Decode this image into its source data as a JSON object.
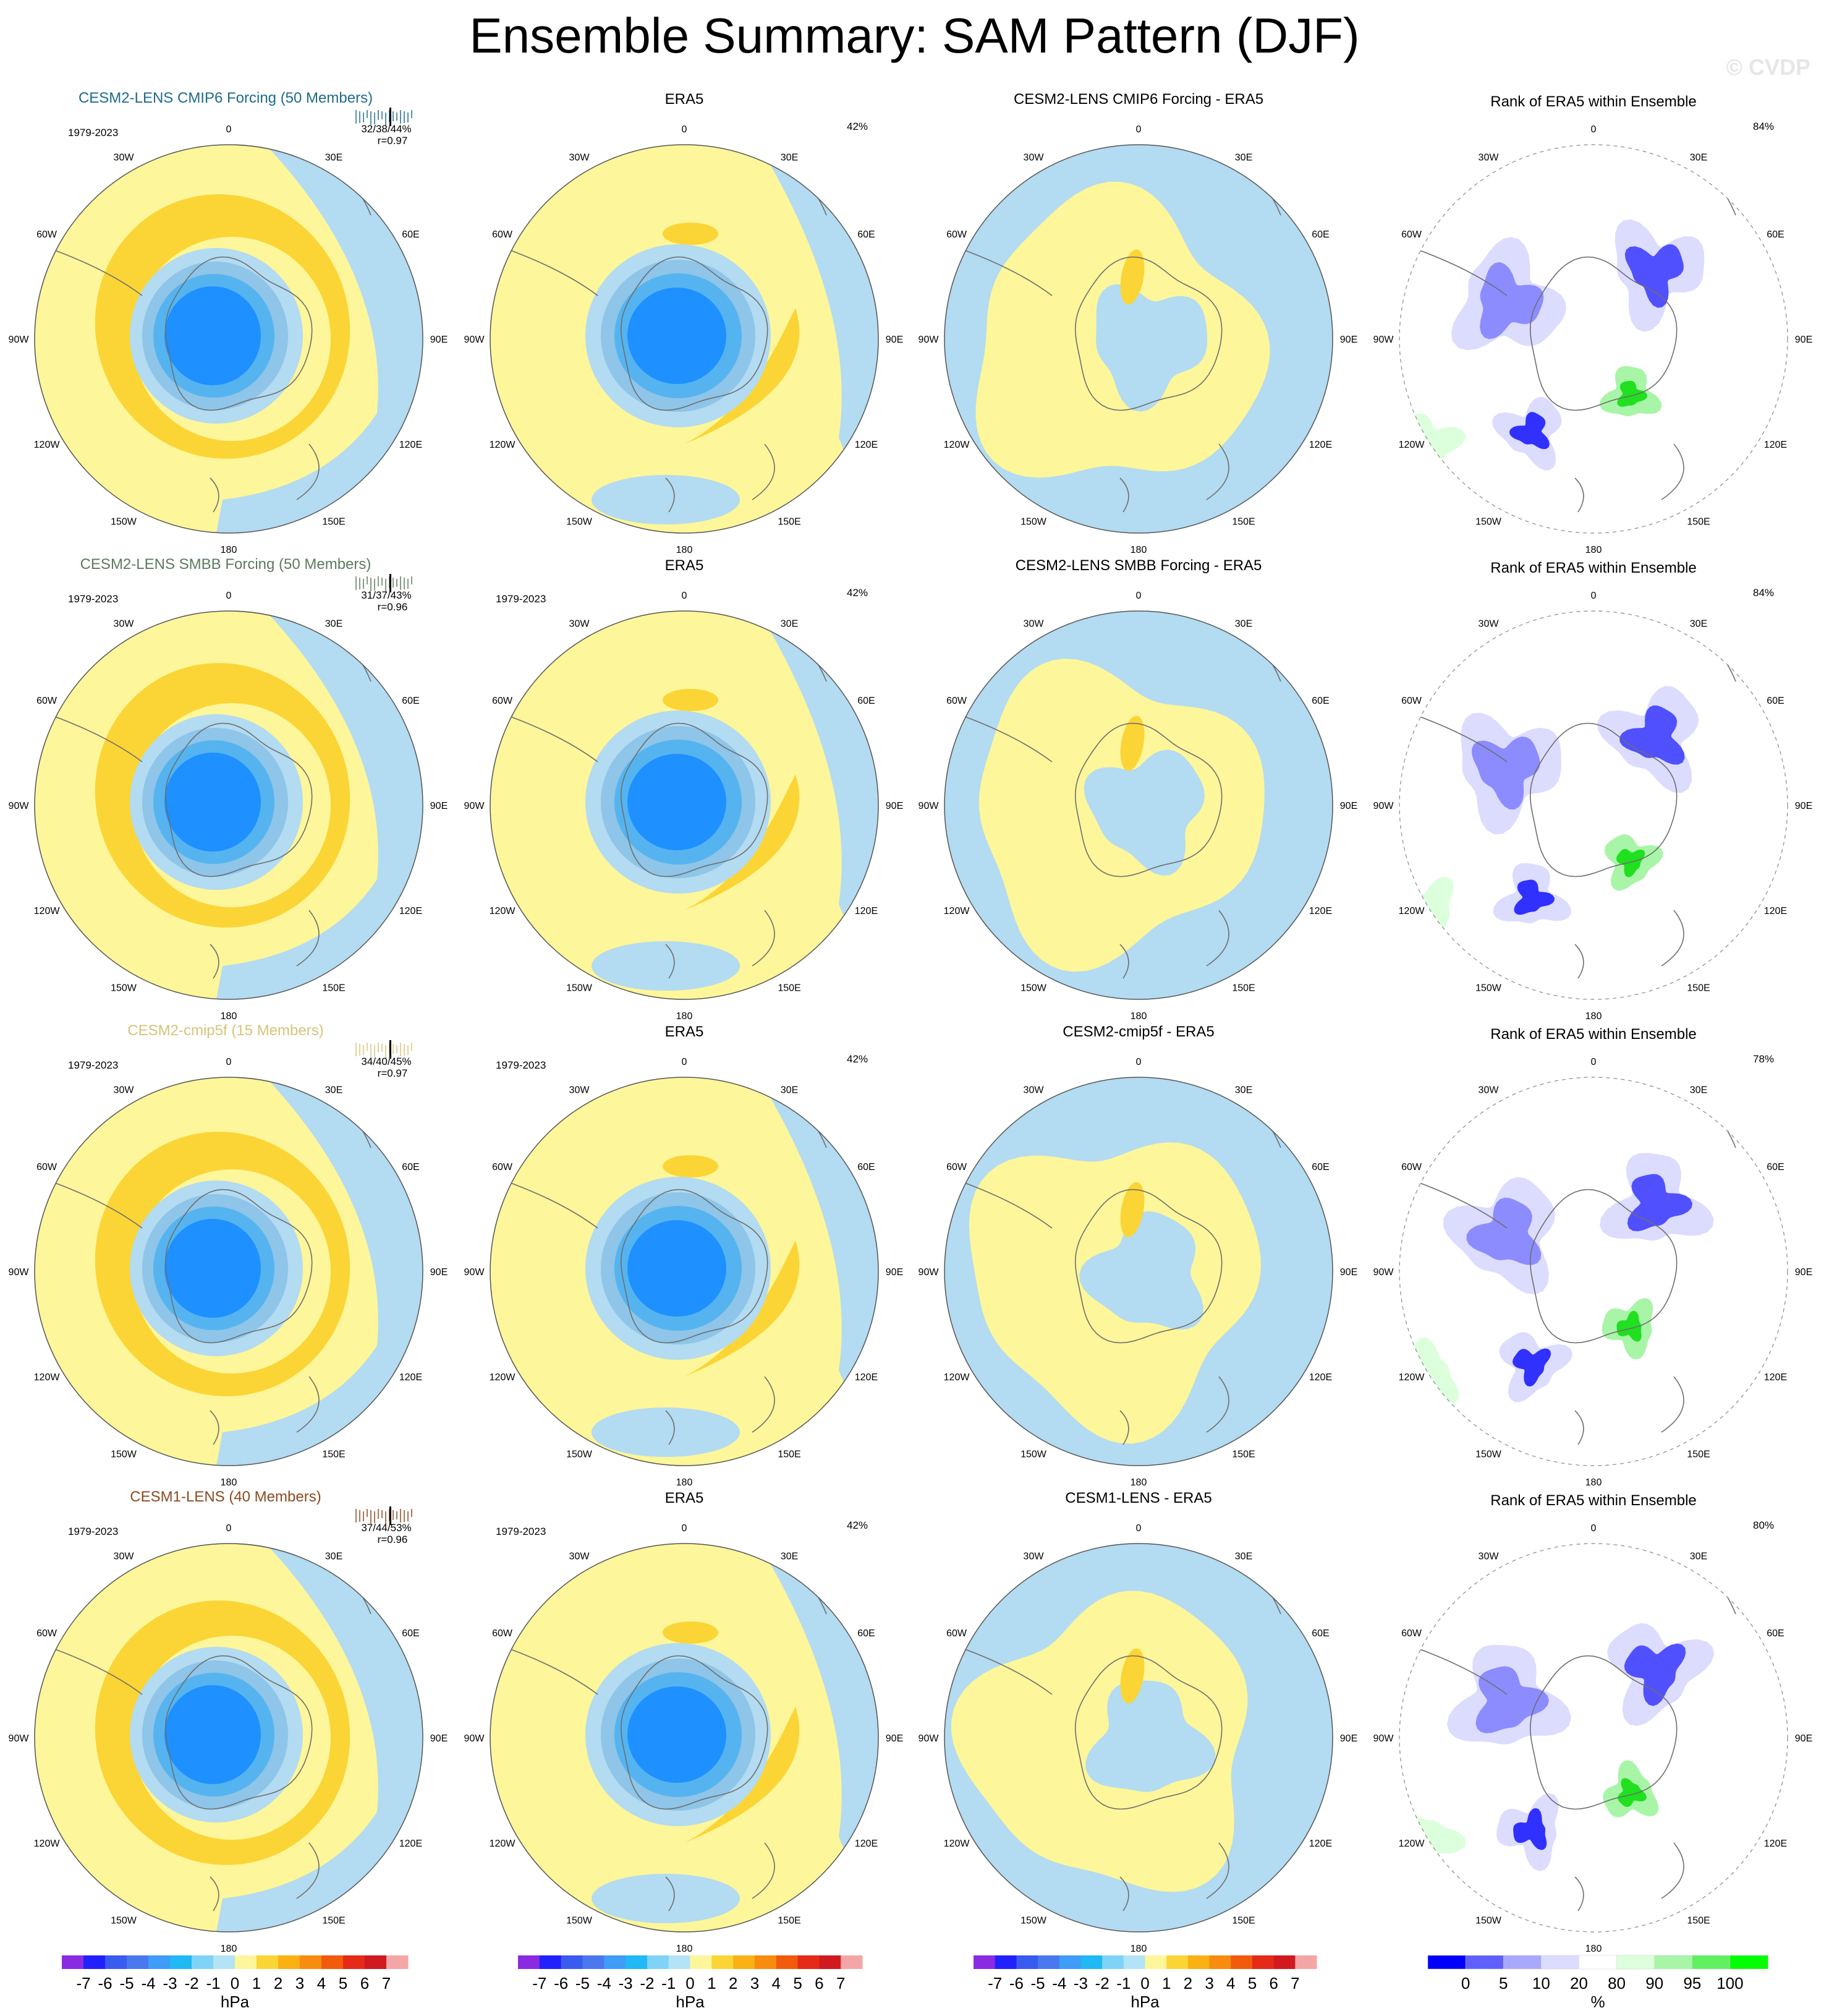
{
  "title": "Ensemble Summary: SAM Pattern (DJF)",
  "watermark": "© CVDP",
  "colors": {
    "neg_light": "#b3dbf1",
    "neg_mid": "#8ec5e8",
    "neg_strong": "#55b4ef",
    "neg_core": "#1e90ff",
    "pos_light": "#fdf69a",
    "pos_mid": "#fbd535",
    "coast": "#6e6e6e",
    "row_label_colors": [
      "#1f6b8c",
      "#5d7a5d",
      "#d8c37a",
      "#8b4a22"
    ]
  },
  "meridian_labels": [
    "0",
    "30E",
    "60E",
    "90E",
    "120E",
    "150E",
    "180",
    "150W",
    "120W",
    "90W",
    "60W",
    "30W"
  ],
  "rows": [
    {
      "model_title": "CESM2-LENS CMIP6 Forcing (50 Members)",
      "period": "1979-2023",
      "stats": "32/38/44%",
      "corr": "r=0.97",
      "diff_title": "CESM2-LENS CMIP6 Forcing - ERA5",
      "rank_title": "Rank of ERA5 within Ensemble",
      "obs_title": "ERA5",
      "obs_pct": "42%",
      "rank_pct": "84%"
    },
    {
      "model_title": "CESM2-LENS SMBB Forcing (50 Members)",
      "period": "1979-2023",
      "stats": "31/37/43%",
      "corr": "r=0.96",
      "diff_title": "CESM2-LENS SMBB Forcing - ERA5",
      "rank_title": "Rank of ERA5 within Ensemble",
      "obs_title": "ERA5",
      "obs_period": "1979-2023",
      "obs_pct": "42%",
      "rank_pct": "84%"
    },
    {
      "model_title": "CESM2-cmip5f (15 Members)",
      "period": "1979-2023",
      "stats": "34/40/45%",
      "corr": "r=0.97",
      "diff_title": "CESM2-cmip5f - ERA5",
      "rank_title": "Rank of ERA5 within Ensemble",
      "obs_title": "ERA5",
      "obs_period": "1979-2023",
      "obs_pct": "42%",
      "rank_pct": "78%"
    },
    {
      "model_title": "CESM1-LENS (40 Members)",
      "period": "1979-2023",
      "stats": "37/44/53%",
      "corr": "r=0.96",
      "diff_title": "CESM1-LENS - ERA5",
      "rank_title": "Rank of ERA5 within Ensemble",
      "obs_title": "ERA5",
      "obs_period": "1979-2023",
      "obs_pct": "42%",
      "rank_pct": "80%"
    }
  ],
  "colorbar_hpa": {
    "labels": [
      "-7",
      "-6",
      "-5",
      "-4",
      "-3",
      "-2",
      "-1",
      "0",
      "1",
      "2",
      "3",
      "4",
      "5",
      "6",
      "7"
    ],
    "unit": "hPa",
    "colors": [
      "#8a2be2",
      "#2121ff",
      "#3a5bf0",
      "#4a78ee",
      "#3f9cf7",
      "#20b8f5",
      "#7fd3f7",
      "#b3e3f6",
      "#fdf69a",
      "#fbd535",
      "#fbb014",
      "#f78c0e",
      "#f25a0c",
      "#e62a18",
      "#d01a20",
      "#f4a6a6"
    ]
  },
  "colorbar_rank": {
    "labels": [
      "0",
      "5",
      "10",
      "20",
      "80",
      "90",
      "95",
      "100"
    ],
    "unit": "%",
    "colors": [
      "#0000ff",
      "#6060ff",
      "#a8a8ff",
      "#dcdcff",
      "#ffffff",
      "#dcffdc",
      "#a8f5a8",
      "#60f060",
      "#00ff00"
    ]
  }
}
